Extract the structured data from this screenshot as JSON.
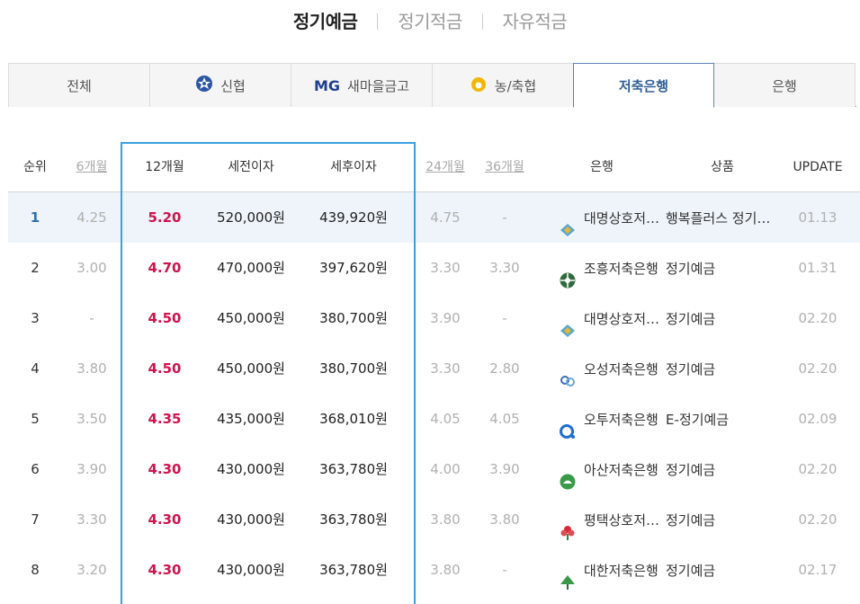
{
  "top_tabs": [
    {
      "label": "정기예금",
      "active": true
    },
    {
      "label": "정기적금",
      "active": false
    },
    {
      "label": "자유적금",
      "active": false
    }
  ],
  "inst_tabs": [
    {
      "label": "전체",
      "icon": "",
      "active": false
    },
    {
      "label": "신협",
      "icon": "shinhyup-logo-icon",
      "active": false
    },
    {
      "label": "새마을금고",
      "icon": "mg-logo-icon",
      "icon_text": "MG",
      "active": false
    },
    {
      "label": "농/축협",
      "icon": "nonghyup-logo-icon",
      "active": false
    },
    {
      "label": "저축은행",
      "icon": "",
      "active": true
    },
    {
      "label": "은행",
      "icon": "",
      "active": false
    }
  ],
  "table": {
    "headers": {
      "rank": "순위",
      "m6": "6개월",
      "m12": "12개월",
      "pre_tax": "세전이자",
      "post_tax": "세후이자",
      "m24": "24개월",
      "m36": "36개월",
      "bank": "은행",
      "product": "상품",
      "update": "UPDATE"
    },
    "rows": [
      {
        "rank": "1",
        "m6": "4.25",
        "m12": "5.20",
        "pre_tax": "520,000원",
        "post_tax": "439,920원",
        "m24": "4.75",
        "m36": "-",
        "bank": "대명상호저축은행",
        "bank_icon": "daemyung-logo-icon",
        "product": "행복플러스 정기예금",
        "update": "01.13"
      },
      {
        "rank": "2",
        "m6": "3.00",
        "m12": "4.70",
        "pre_tax": "470,000원",
        "post_tax": "397,620원",
        "m24": "3.30",
        "m36": "3.30",
        "bank": "조흥저축은행",
        "bank_icon": "joheung-logo-icon",
        "product": "정기예금",
        "update": "01.31"
      },
      {
        "rank": "3",
        "m6": "-",
        "m12": "4.50",
        "pre_tax": "450,000원",
        "post_tax": "380,700원",
        "m24": "3.90",
        "m36": "-",
        "bank": "대명상호저축은행",
        "bank_icon": "daemyung-logo-icon",
        "product": "정기예금",
        "update": "02.20"
      },
      {
        "rank": "4",
        "m6": "3.80",
        "m12": "4.50",
        "pre_tax": "450,000원",
        "post_tax": "380,700원",
        "m24": "3.30",
        "m36": "2.80",
        "bank": "오성저축은행",
        "bank_icon": "osung-logo-icon",
        "product": "정기예금",
        "update": "02.20"
      },
      {
        "rank": "5",
        "m6": "3.50",
        "m12": "4.35",
        "pre_tax": "435,000원",
        "post_tax": "368,010원",
        "m24": "4.05",
        "m36": "4.05",
        "bank": "오투저축은행",
        "bank_icon": "o2-logo-icon",
        "product": "E-정기예금",
        "update": "02.09"
      },
      {
        "rank": "6",
        "m6": "3.90",
        "m12": "4.30",
        "pre_tax": "430,000원",
        "post_tax": "363,780원",
        "m24": "4.00",
        "m36": "3.90",
        "bank": "아산저축은행",
        "bank_icon": "asan-logo-icon",
        "product": "정기예금",
        "update": "02.20"
      },
      {
        "rank": "7",
        "m6": "3.30",
        "m12": "4.30",
        "pre_tax": "430,000원",
        "post_tax": "363,780원",
        "m24": "3.80",
        "m36": "3.80",
        "bank": "평택상호저축은행",
        "bank_icon": "pyeongtaek-logo-icon",
        "product": "정기예금",
        "update": "02.20"
      },
      {
        "rank": "8",
        "m6": "3.20",
        "m12": "4.30",
        "pre_tax": "430,000원",
        "post_tax": "363,780원",
        "m24": "3.80",
        "m36": "-",
        "bank": "대한저축은행",
        "bank_icon": "daehan-logo-icon",
        "product": "정기예금",
        "update": "02.17"
      }
    ]
  }
}
